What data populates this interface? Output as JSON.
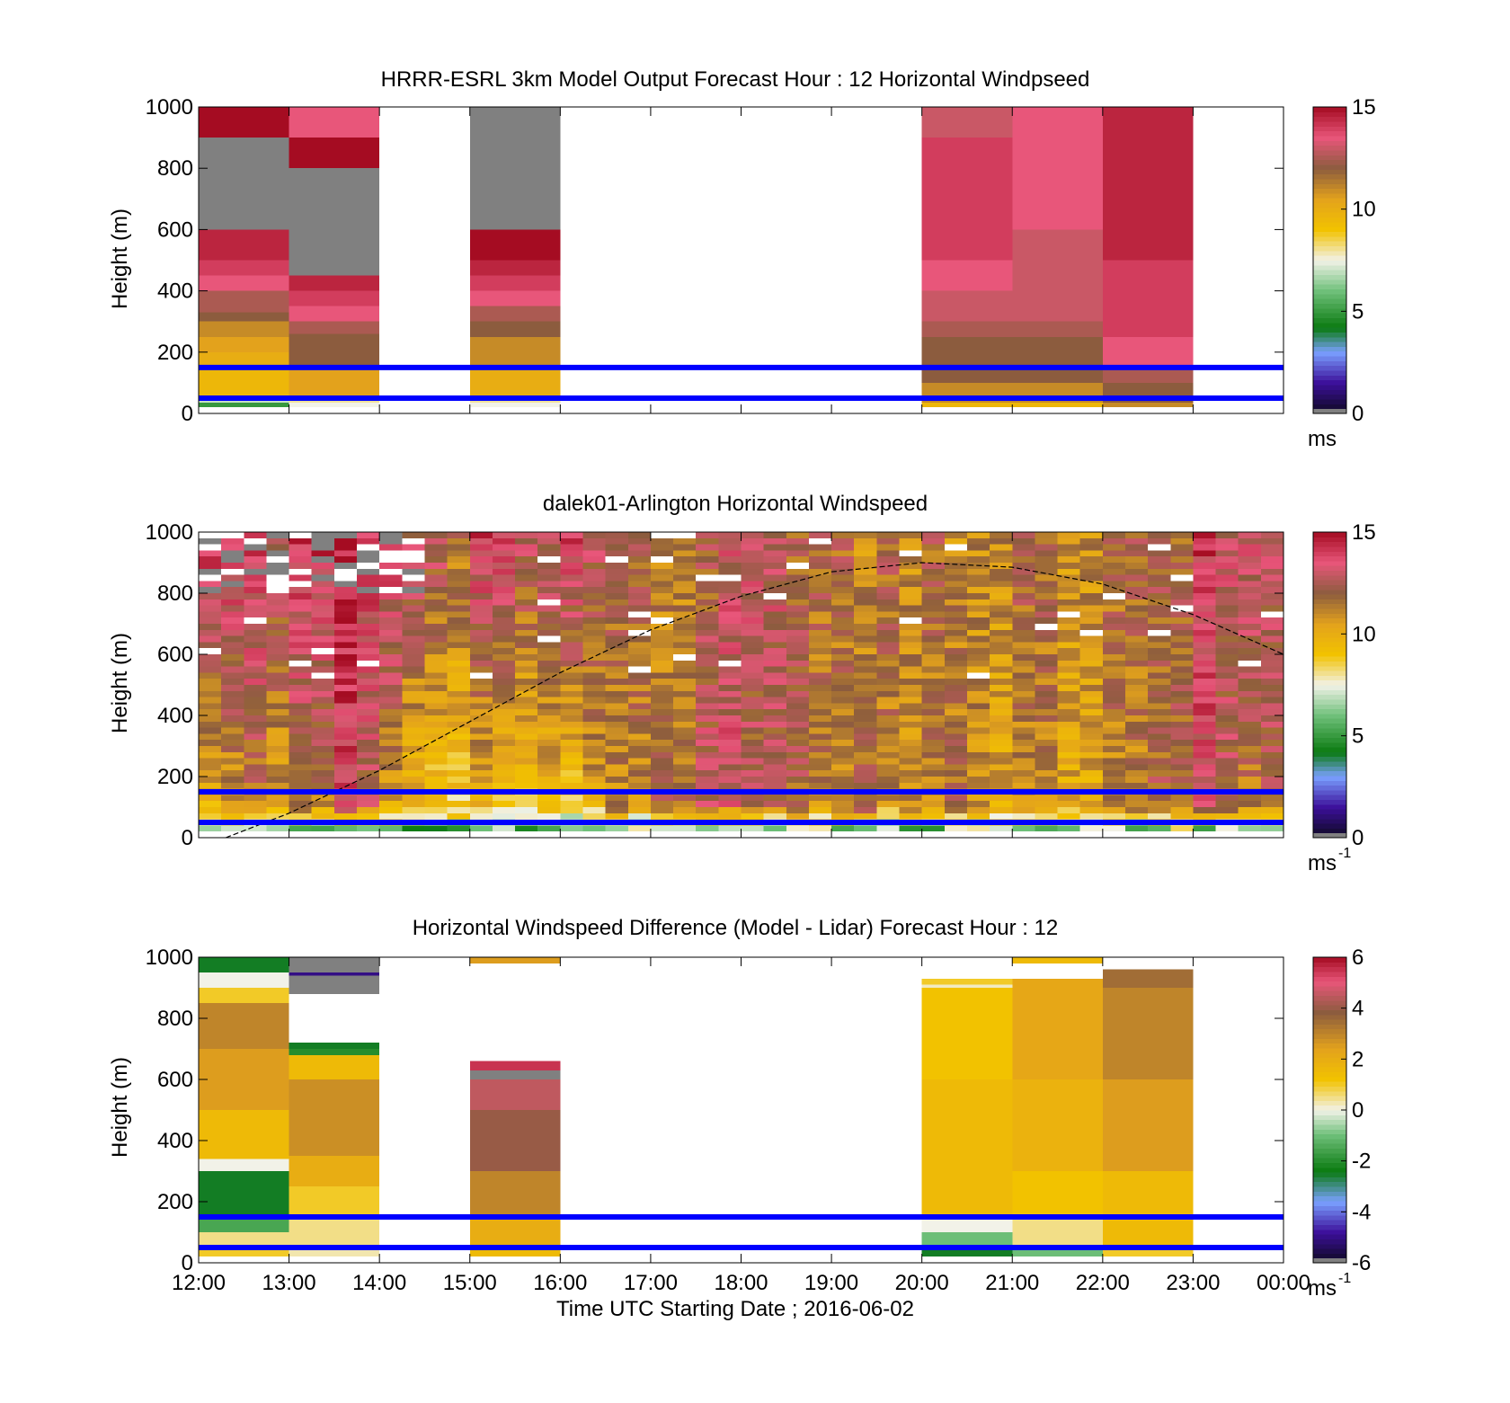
{
  "chart_data": [
    {
      "type": "heatmap",
      "title": "HRRR-ESRL 3km Model Output   Forecast Hour : 12 Horizontal Windpseed",
      "ylabel": "Height (m)",
      "xlabel": "",
      "ylim": [
        0,
        1000
      ],
      "yticks": [
        "0",
        "200",
        "400",
        "600",
        "800",
        "1000"
      ],
      "xticks_hours": [
        12,
        13,
        14,
        15,
        16,
        17,
        18,
        19,
        20,
        21,
        22,
        23,
        24
      ],
      "colorbar": {
        "ticks": [
          "0",
          "5",
          "10",
          "15"
        ],
        "range": [
          0,
          15
        ],
        "unit": "ms",
        "unit_sup": "",
        "palette": "windspeed"
      },
      "reference_lines_m": [
        50,
        150
      ],
      "columns": [
        {
          "t0": 12,
          "t1": 13,
          "segments": [
            [
              20,
              35,
              5
            ],
            [
              35,
              50,
              7
            ],
            [
              50,
              150,
              9.5
            ],
            [
              150,
              200,
              10
            ],
            [
              200,
              250,
              10.5
            ],
            [
              250,
              300,
              11
            ],
            [
              300,
              330,
              12
            ],
            [
              330,
              400,
              12.5
            ],
            [
              400,
              450,
              13.5
            ],
            [
              450,
              500,
              14
            ],
            [
              500,
              600,
              14.5
            ],
            [
              600,
              900,
              null
            ],
            [
              900,
              1000,
              15
            ]
          ]
        },
        {
          "t0": 13,
          "t1": 14,
          "segments": [
            [
              20,
              35,
              7.5
            ],
            [
              35,
              50,
              8
            ],
            [
              50,
              150,
              10.5
            ],
            [
              150,
              260,
              12
            ],
            [
              260,
              300,
              12.5
            ],
            [
              300,
              350,
              13.5
            ],
            [
              350,
              400,
              14
            ],
            [
              400,
              450,
              14.5
            ],
            [
              450,
              800,
              null
            ],
            [
              800,
              900,
              15
            ],
            [
              900,
              1000,
              13.5
            ]
          ]
        },
        {
          "t0": 15,
          "t1": 16,
          "segments": [
            [
              20,
              35,
              7.5
            ],
            [
              35,
              50,
              8
            ],
            [
              50,
              150,
              10
            ],
            [
              150,
              250,
              11
            ],
            [
              250,
              300,
              12
            ],
            [
              300,
              350,
              12.5
            ],
            [
              350,
              400,
              13.5
            ],
            [
              400,
              450,
              14
            ],
            [
              450,
              500,
              14.5
            ],
            [
              500,
              600,
              15
            ],
            [
              600,
              1000,
              null
            ]
          ]
        },
        {
          "t0": 20,
          "t1": 21,
          "segments": [
            [
              20,
              35,
              9.5
            ],
            [
              35,
              100,
              11
            ],
            [
              100,
              250,
              12
            ],
            [
              250,
              300,
              12.5
            ],
            [
              300,
              400,
              13
            ],
            [
              400,
              500,
              13.5
            ],
            [
              500,
              900,
              14
            ],
            [
              900,
              1000,
              13
            ]
          ]
        },
        {
          "t0": 21,
          "t1": 22,
          "segments": [
            [
              20,
              35,
              9.5
            ],
            [
              35,
              100,
              11
            ],
            [
              100,
              250,
              12
            ],
            [
              250,
              300,
              12.5
            ],
            [
              300,
              400,
              13
            ],
            [
              400,
              600,
              13
            ],
            [
              600,
              800,
              13.5
            ],
            [
              800,
              1000,
              13.5
            ]
          ]
        },
        {
          "t0": 22,
          "t1": 23,
          "segments": [
            [
              20,
              35,
              11
            ],
            [
              35,
              100,
              12
            ],
            [
              100,
              150,
              12.5
            ],
            [
              150,
              250,
              13.5
            ],
            [
              250,
              350,
              14
            ],
            [
              350,
              500,
              14
            ],
            [
              500,
              1000,
              14.5
            ]
          ]
        }
      ]
    },
    {
      "type": "heatmap",
      "title": "dalek01-Arlington  Horizontal Windspeed",
      "ylabel": "Height (m)",
      "xlabel": "",
      "ylim": [
        0,
        1000
      ],
      "yticks": [
        "0",
        "200",
        "400",
        "600",
        "800",
        "1000"
      ],
      "xticks_hours": [
        12,
        13,
        14,
        15,
        16,
        17,
        18,
        19,
        20,
        21,
        22,
        23,
        24
      ],
      "colorbar": {
        "ticks": [
          "0",
          "5",
          "10",
          "15"
        ],
        "range": [
          0,
          15
        ],
        "unit": "ms",
        "unit_sup": "-1",
        "palette": "windspeed"
      },
      "reference_lines_m": [
        50,
        150
      ],
      "sun_curve": {
        "description": "dashed arc",
        "points": [
          [
            12.3,
            0
          ],
          [
            13,
            80
          ],
          [
            14,
            220
          ],
          [
            15,
            380
          ],
          [
            16,
            540
          ],
          [
            17,
            680
          ],
          [
            18,
            790
          ],
          [
            19,
            870
          ],
          [
            20,
            900
          ],
          [
            21,
            885
          ],
          [
            22,
            830
          ],
          [
            23,
            730
          ],
          [
            24,
            600
          ]
        ]
      },
      "profiles": {
        "start_hour": 12,
        "step_hours": 0.25,
        "count": 48,
        "low_level_m": [
          0,
          120
        ],
        "missing_top_until_hour": 14.5,
        "column_base_speed": [
          9,
          10,
          11,
          10,
          11,
          11,
          13,
          12,
          10,
          9,
          8,
          8,
          9,
          8,
          8,
          9,
          8,
          10,
          11,
          11,
          12,
          12,
          13,
          13,
          12,
          12,
          12,
          11,
          11,
          12,
          11,
          11,
          11,
          12,
          11,
          10,
          11,
          11,
          10,
          10,
          11,
          11,
          12,
          12,
          13,
          12,
          11,
          12
        ],
        "column_upper_speed": [
          14,
          14,
          14,
          13,
          14,
          14,
          15,
          14,
          14,
          13,
          13,
          12,
          14,
          14,
          13,
          13,
          14,
          13,
          12,
          12,
          11,
          11,
          12,
          13,
          13,
          13,
          12,
          12,
          12,
          11,
          12,
          11,
          12,
          11,
          11,
          11,
          12,
          12,
          11,
          11,
          12,
          12,
          12,
          12,
          14,
          13,
          13,
          13
        ]
      }
    },
    {
      "type": "heatmap",
      "title": "Horizontal Windspeed Difference (Model - Lidar) Forecast Hour : 12",
      "ylabel": "Height (m)",
      "xlabel": "Time UTC  Starting Date ; 2016-06-02",
      "ylim": [
        0,
        1000
      ],
      "yticks": [
        "0",
        "200",
        "400",
        "600",
        "800",
        "1000"
      ],
      "xticks": [
        "12:00",
        "13:00",
        "14:00",
        "15:00",
        "16:00",
        "17:00",
        "18:00",
        "19:00",
        "20:00",
        "21:00",
        "22:00",
        "23:00",
        "00:00"
      ],
      "xticks_hours": [
        12,
        13,
        14,
        15,
        16,
        17,
        18,
        19,
        20,
        21,
        22,
        23,
        24
      ],
      "colorbar": {
        "ticks": [
          "-6",
          "-4",
          "-2",
          "0",
          "2",
          "4",
          "6"
        ],
        "range": [
          -6,
          6
        ],
        "unit": "ms",
        "unit_sup": "-1",
        "palette": "difference"
      },
      "reference_lines_m": [
        50,
        150
      ],
      "columns": [
        {
          "t0": 12,
          "t1": 13,
          "segments": [
            [
              20,
              50,
              1
            ],
            [
              50,
              100,
              0.5
            ],
            [
              100,
              150,
              -1.5
            ],
            [
              150,
              300,
              -2.5
            ],
            [
              300,
              340,
              0
            ],
            [
              340,
              500,
              1.5
            ],
            [
              500,
              700,
              2.5
            ],
            [
              700,
              850,
              3
            ],
            [
              850,
              900,
              1
            ],
            [
              900,
              950,
              0
            ],
            [
              950,
              1000,
              -2.5
            ]
          ]
        },
        {
          "t0": 13,
          "t1": 14,
          "segments": [
            [
              20,
              50,
              0.3
            ],
            [
              50,
              150,
              0.5
            ],
            [
              150,
              250,
              1
            ],
            [
              250,
              350,
              2
            ],
            [
              350,
              600,
              2.8
            ],
            [
              600,
              680,
              1.5
            ],
            [
              680,
              700,
              -2
            ],
            [
              700,
              720,
              -2.5
            ],
            [
              880,
              940,
              null
            ],
            [
              940,
              950,
              -5
            ],
            [
              950,
              1000,
              null
            ]
          ]
        },
        {
          "t0": 15,
          "t1": 16,
          "segments": [
            [
              20,
              50,
              1.5
            ],
            [
              50,
              150,
              2
            ],
            [
              150,
              300,
              3
            ],
            [
              300,
              500,
              4
            ],
            [
              500,
              600,
              4.5
            ],
            [
              600,
              630,
              null
            ],
            [
              630,
              660,
              5.5
            ],
            [
              980,
              1000,
              2.5
            ]
          ]
        },
        {
          "t0": 20,
          "t1": 21,
          "segments": [
            [
              20,
              50,
              -2.5
            ],
            [
              50,
              100,
              -1
            ],
            [
              100,
              150,
              0
            ],
            [
              150,
              350,
              1.5
            ],
            [
              350,
              600,
              1.5
            ],
            [
              600,
              900,
              1.2
            ],
            [
              900,
              910,
              0.2
            ],
            [
              910,
              930,
              1
            ]
          ]
        },
        {
          "t0": 21,
          "t1": 22,
          "segments": [
            [
              20,
              50,
              -1
            ],
            [
              50,
              150,
              0.5
            ],
            [
              150,
              300,
              1.2
            ],
            [
              300,
              600,
              1.8
            ],
            [
              600,
              930,
              2.2
            ],
            [
              980,
              1000,
              1.5
            ]
          ]
        },
        {
          "t0": 22,
          "t1": 23,
          "segments": [
            [
              20,
              50,
              1
            ],
            [
              50,
              300,
              1.5
            ],
            [
              300,
              600,
              2.5
            ],
            [
              600,
              900,
              3
            ],
            [
              900,
              960,
              3.5
            ]
          ]
        }
      ]
    }
  ]
}
